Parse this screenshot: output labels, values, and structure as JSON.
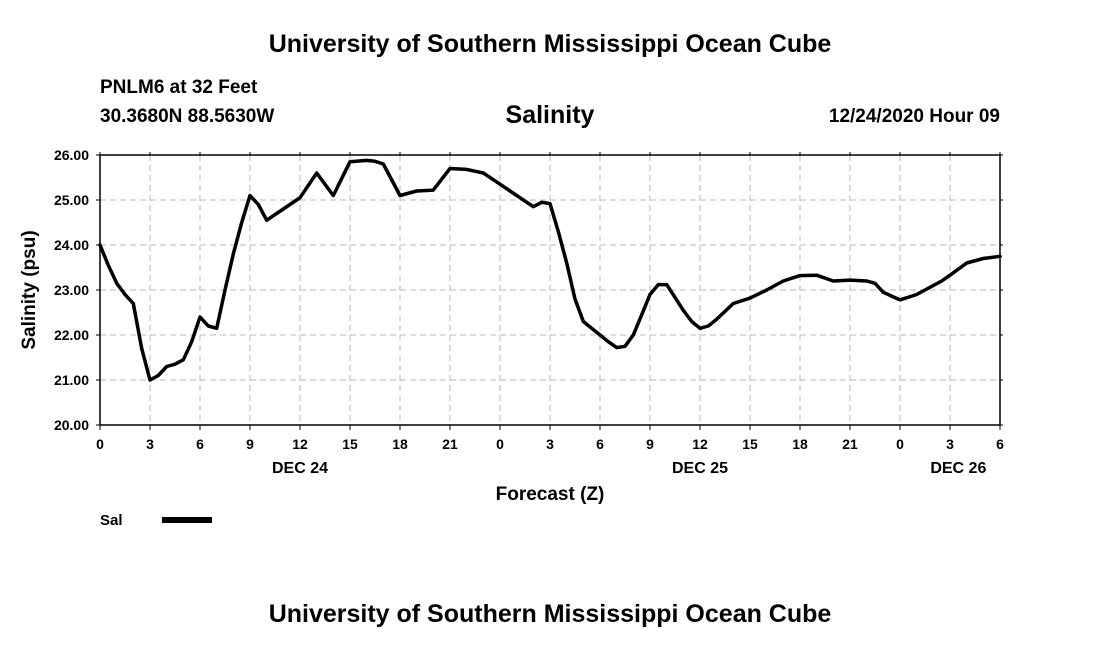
{
  "header": {
    "title": "University of Southern Mississippi Ocean Cube",
    "station": "PNLM6 at 32 Feet",
    "coords": "30.3680N 88.5630W",
    "variable": "Salinity",
    "timestamp": "12/24/2020 Hour 09"
  },
  "footer": {
    "title": "University of Southern Mississippi Ocean Cube"
  },
  "legend": {
    "label": "Sal",
    "color": "#000000"
  },
  "chart_data": {
    "type": "line",
    "title": "Salinity",
    "xlabel": "Forecast (Z)",
    "ylabel": "Salinity (psu)",
    "xlim": [
      0,
      54
    ],
    "ylim": [
      20,
      26
    ],
    "grid": true,
    "x_unit": "forecast hour",
    "yticks": [
      "20.00",
      "21.00",
      "22.00",
      "23.00",
      "24.00",
      "25.00",
      "26.00"
    ],
    "xtick_values": [
      0,
      3,
      6,
      9,
      12,
      15,
      18,
      21,
      24,
      27,
      30,
      33,
      36,
      39,
      42,
      45,
      48,
      51,
      54
    ],
    "xtick_labels": [
      "0",
      "3",
      "6",
      "9",
      "12",
      "15",
      "18",
      "21",
      "0",
      "3",
      "6",
      "9",
      "12",
      "15",
      "18",
      "21",
      "0",
      "3",
      "6"
    ],
    "day_labels": [
      {
        "x": 12,
        "label": "DEC 24"
      },
      {
        "x": 36,
        "label": "DEC 25"
      },
      {
        "x": 51.5,
        "label": "DEC 26"
      }
    ],
    "series": [
      {
        "name": "Sal",
        "x": [
          0,
          0.5,
          1,
          1.5,
          2,
          2.5,
          3,
          3.5,
          4,
          4.5,
          5,
          5.5,
          6,
          6.5,
          7,
          7.5,
          8,
          8.5,
          9,
          9.5,
          10,
          11,
          12,
          13,
          14,
          15,
          16,
          16.5,
          17,
          18,
          19,
          20,
          21,
          22,
          23,
          24,
          25,
          26,
          26.5,
          27,
          27.5,
          28,
          28.5,
          29,
          29.5,
          30,
          30.5,
          31,
          31.5,
          32,
          32.5,
          33,
          33.5,
          34,
          35,
          35.5,
          36,
          36.5,
          37,
          38,
          39,
          40,
          41,
          42,
          43,
          44,
          45,
          46,
          46.5,
          47,
          48,
          49,
          50,
          50.5,
          51,
          52,
          53,
          54
        ],
        "values": [
          24.0,
          23.55,
          23.15,
          22.9,
          22.7,
          21.7,
          21.0,
          21.1,
          21.3,
          21.35,
          21.45,
          21.85,
          22.4,
          22.2,
          22.15,
          23.0,
          23.8,
          24.5,
          25.1,
          24.9,
          24.55,
          24.8,
          25.05,
          25.6,
          25.1,
          25.85,
          25.88,
          25.86,
          25.8,
          25.1,
          25.2,
          25.22,
          25.7,
          25.68,
          25.6,
          25.35,
          25.1,
          24.85,
          24.95,
          24.92,
          24.3,
          23.6,
          22.8,
          22.3,
          22.15,
          22.0,
          21.85,
          21.72,
          21.75,
          22.0,
          22.45,
          22.9,
          23.12,
          23.12,
          22.55,
          22.3,
          22.15,
          22.2,
          22.35,
          22.7,
          22.82,
          23.0,
          23.2,
          23.32,
          23.33,
          23.2,
          23.22,
          23.2,
          23.15,
          22.95,
          22.78,
          22.9,
          23.1,
          23.2,
          23.33,
          23.6,
          23.7,
          23.75
        ]
      }
    ]
  }
}
